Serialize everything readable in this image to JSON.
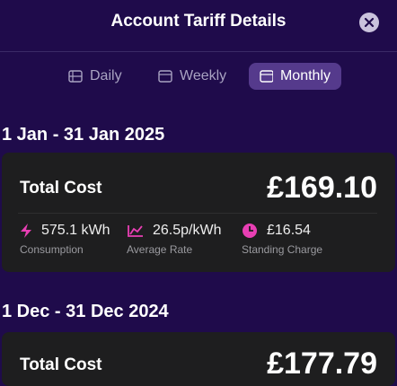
{
  "header": {
    "title": "Account Tariff Details"
  },
  "tabs": [
    "Daily",
    "Weekly",
    "Monthly"
  ],
  "periods": [
    {
      "period": "1 Jan - 31 Jan 2025",
      "total_label": "Total Cost",
      "total": "£169.10",
      "stats": [
        {
          "value": "575.1 kWh",
          "label": "Consumption"
        },
        {
          "value": "26.5p/kWh",
          "label": "Average Rate"
        },
        {
          "value": "£16.54",
          "label": "Standing Charge"
        }
      ]
    },
    {
      "period": "1 Dec - 31 Dec 2024",
      "total_label": "Total Cost",
      "total": "£177.79"
    }
  ]
}
